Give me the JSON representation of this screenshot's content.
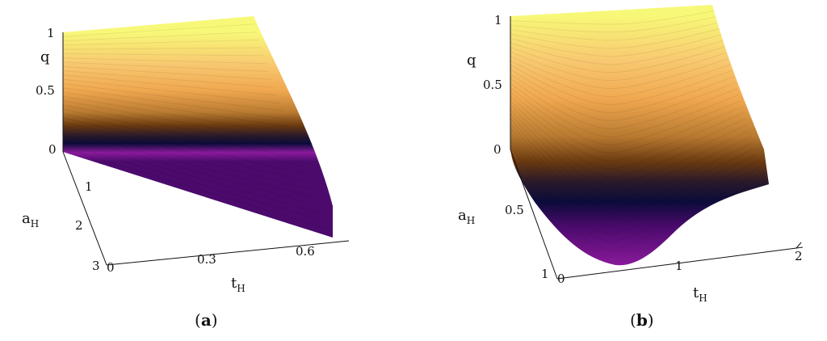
{
  "chart_data": [
    {
      "type": "surface",
      "panel_label": "a",
      "z_label": "q",
      "y_label_main": "a",
      "y_label_sub": "H",
      "x_label_main": "t",
      "x_label_sub": "H",
      "z_ticks": [
        "1",
        "0.5",
        "0"
      ],
      "y_ticks": [
        "0",
        "1",
        "2",
        "3"
      ],
      "x_ticks": [
        "0",
        "0.3",
        "0.6"
      ],
      "x_range": [
        0,
        0.7
      ],
      "y_range": [
        0,
        3
      ],
      "z_range": [
        0,
        1
      ],
      "colormap": [
        "#4b0a6c",
        "#8b1a9c",
        "#0b0b3a",
        "#2a1a2a",
        "#6b3a10",
        "#b87a30",
        "#f0a850",
        "#f8c870",
        "#f8f878"
      ]
    },
    {
      "type": "surface",
      "panel_label": "b",
      "z_label": "q",
      "y_label_main": "a",
      "y_label_sub": "H",
      "x_label_main": "t",
      "x_label_sub": "H",
      "z_ticks": [
        "1",
        "0.5",
        "0"
      ],
      "y_ticks": [
        "0",
        "0.5",
        "1"
      ],
      "x_ticks": [
        "0",
        "1",
        "2"
      ],
      "x_range": [
        0,
        2.3
      ],
      "y_range": [
        0,
        1
      ],
      "z_range": [
        0,
        1
      ],
      "colormap": [
        "#8b1a9c",
        "#4b0a6c",
        "#0b0b3a",
        "#2a1a2a",
        "#6b3a10",
        "#b87a30",
        "#f0a850",
        "#f8c870",
        "#f8f878"
      ]
    }
  ]
}
